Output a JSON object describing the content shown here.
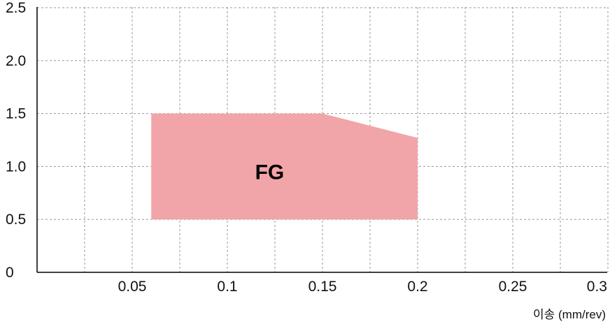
{
  "chart_data": {
    "type": "area",
    "xlabel": "이송 (mm/rev)",
    "ylabel": "",
    "xlim": [
      0,
      0.3
    ],
    "ylim": [
      0,
      2.5
    ],
    "x_ticks": [
      0.05,
      0.1,
      0.15,
      0.2,
      0.25,
      0.3
    ],
    "x_tick_labels": [
      "0.05",
      "0.1",
      "0.15",
      "0.2",
      "0.25",
      "0.3"
    ],
    "y_ticks": [
      0,
      0.5,
      1.0,
      1.5,
      2.0,
      2.5
    ],
    "y_tick_labels": [
      "0",
      "0.5",
      "1.0",
      "1.5",
      "2.0",
      "2.5"
    ],
    "grid": true,
    "regions": [
      {
        "name": "FG",
        "color": "#f2a5a8",
        "polygon": [
          [
            0.06,
            0.5
          ],
          [
            0.06,
            1.5
          ],
          [
            0.15,
            1.5
          ],
          [
            0.2,
            1.27
          ],
          [
            0.2,
            0.5
          ]
        ],
        "label_at": [
          0.12,
          1.0
        ]
      }
    ]
  }
}
